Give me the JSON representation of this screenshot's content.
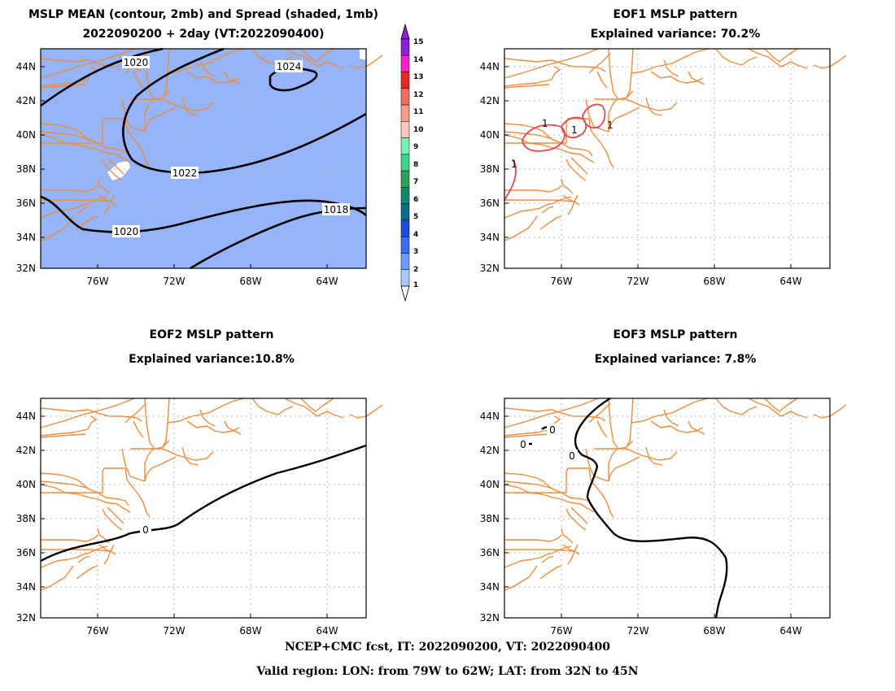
{
  "panels": {
    "mean": {
      "title_line1": "MSLP MEAN (contour, 2mb) and Spread (shaded, 1mb)",
      "title_line2": "2022090200 + 2day (VT:2022090400)",
      "contour_labels": [
        "1020",
        "1024",
        "1022",
        "1020",
        "1018"
      ]
    },
    "eof1": {
      "title_line1": "EOF1 MSLP pattern",
      "title_line2": "Explained variance: 70.2%",
      "contour_labels": [
        "1",
        "1",
        "1",
        "1"
      ]
    },
    "eof2": {
      "title_line1": "EOF2 MSLP pattern",
      "title_line2": "Explained variance:10.8%",
      "contour_labels": [
        "0"
      ]
    },
    "eof3": {
      "title_line1": "EOF3 MSLP pattern",
      "title_line2": "Explained variance: 7.8%",
      "contour_labels": [
        "0",
        "0",
        "0"
      ]
    }
  },
  "axes": {
    "lat_ticks": [
      "44N",
      "42N",
      "40N",
      "38N",
      "36N",
      "34N",
      "32N"
    ],
    "lon_ticks": [
      "76W",
      "72W",
      "68W",
      "64W"
    ]
  },
  "colorbar": {
    "labels": [
      "1",
      "2",
      "3",
      "4",
      "5",
      "6",
      "7",
      "8",
      "9",
      "10",
      "11",
      "12",
      "13",
      "14",
      "15"
    ],
    "colors": [
      "#f5f5ff",
      "#aac8ff",
      "#6e9bff",
      "#3c6ef5",
      "#1e4bdc",
      "#0a6e8c",
      "#0f8a6e",
      "#2da05a",
      "#3cd28c",
      "#78f0b4",
      "#ffc8be",
      "#ff9b8c",
      "#f06e64",
      "#e6281e",
      "#ff1ec8",
      "#8c1edc"
    ]
  },
  "footer": {
    "line1": "NCEP+CMC fcst, IT: 2022090200, VT: 2022090400",
    "line2": "Valid region: LON: from 79W to 62W; LAT: from 32N to 45N"
  },
  "colors": {
    "shade": "#96b4fa",
    "coast": "#f08c3c",
    "grid": "#b4b4b4",
    "contour": "#000000",
    "eof1_contour": "#e64650"
  }
}
